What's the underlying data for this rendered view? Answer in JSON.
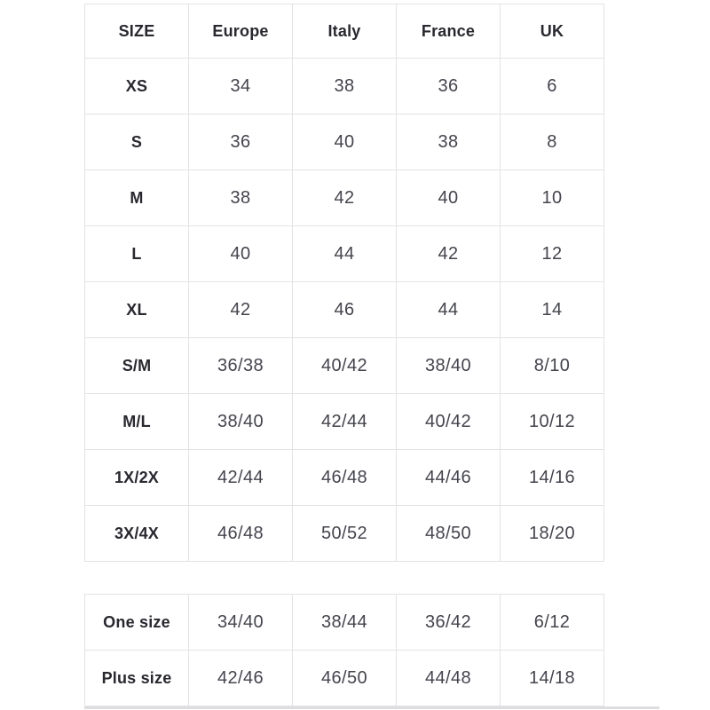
{
  "colors": {
    "background": "#ffffff",
    "border": "#e3e3e6",
    "header_text": "#28282f",
    "cell_text": "#44444e",
    "bottom_divider": "#dddde0"
  },
  "size_table": {
    "columns": [
      "SIZE",
      "Europe",
      "Italy",
      "France",
      "UK"
    ],
    "rows": [
      [
        "XS",
        "34",
        "38",
        "36",
        "6"
      ],
      [
        "S",
        "36",
        "40",
        "38",
        "8"
      ],
      [
        "M",
        "38",
        "42",
        "40",
        "10"
      ],
      [
        "L",
        "40",
        "44",
        "42",
        "12"
      ],
      [
        "XL",
        "42",
        "46",
        "44",
        "14"
      ],
      [
        "S/M",
        "36/38",
        "40/42",
        "38/40",
        "8/10"
      ],
      [
        "M/L",
        "38/40",
        "42/44",
        "40/42",
        "10/12"
      ],
      [
        "1X/2X",
        "42/44",
        "46/48",
        "44/46",
        "14/16"
      ],
      [
        "3X/4X",
        "46/48",
        "50/52",
        "48/50",
        "18/20"
      ]
    ]
  },
  "special_size_table": {
    "rows": [
      [
        "One size",
        "34/40",
        "38/44",
        "36/42",
        "6/12"
      ],
      [
        "Plus size",
        "42/46",
        "46/50",
        "44/48",
        "14/18"
      ]
    ]
  }
}
